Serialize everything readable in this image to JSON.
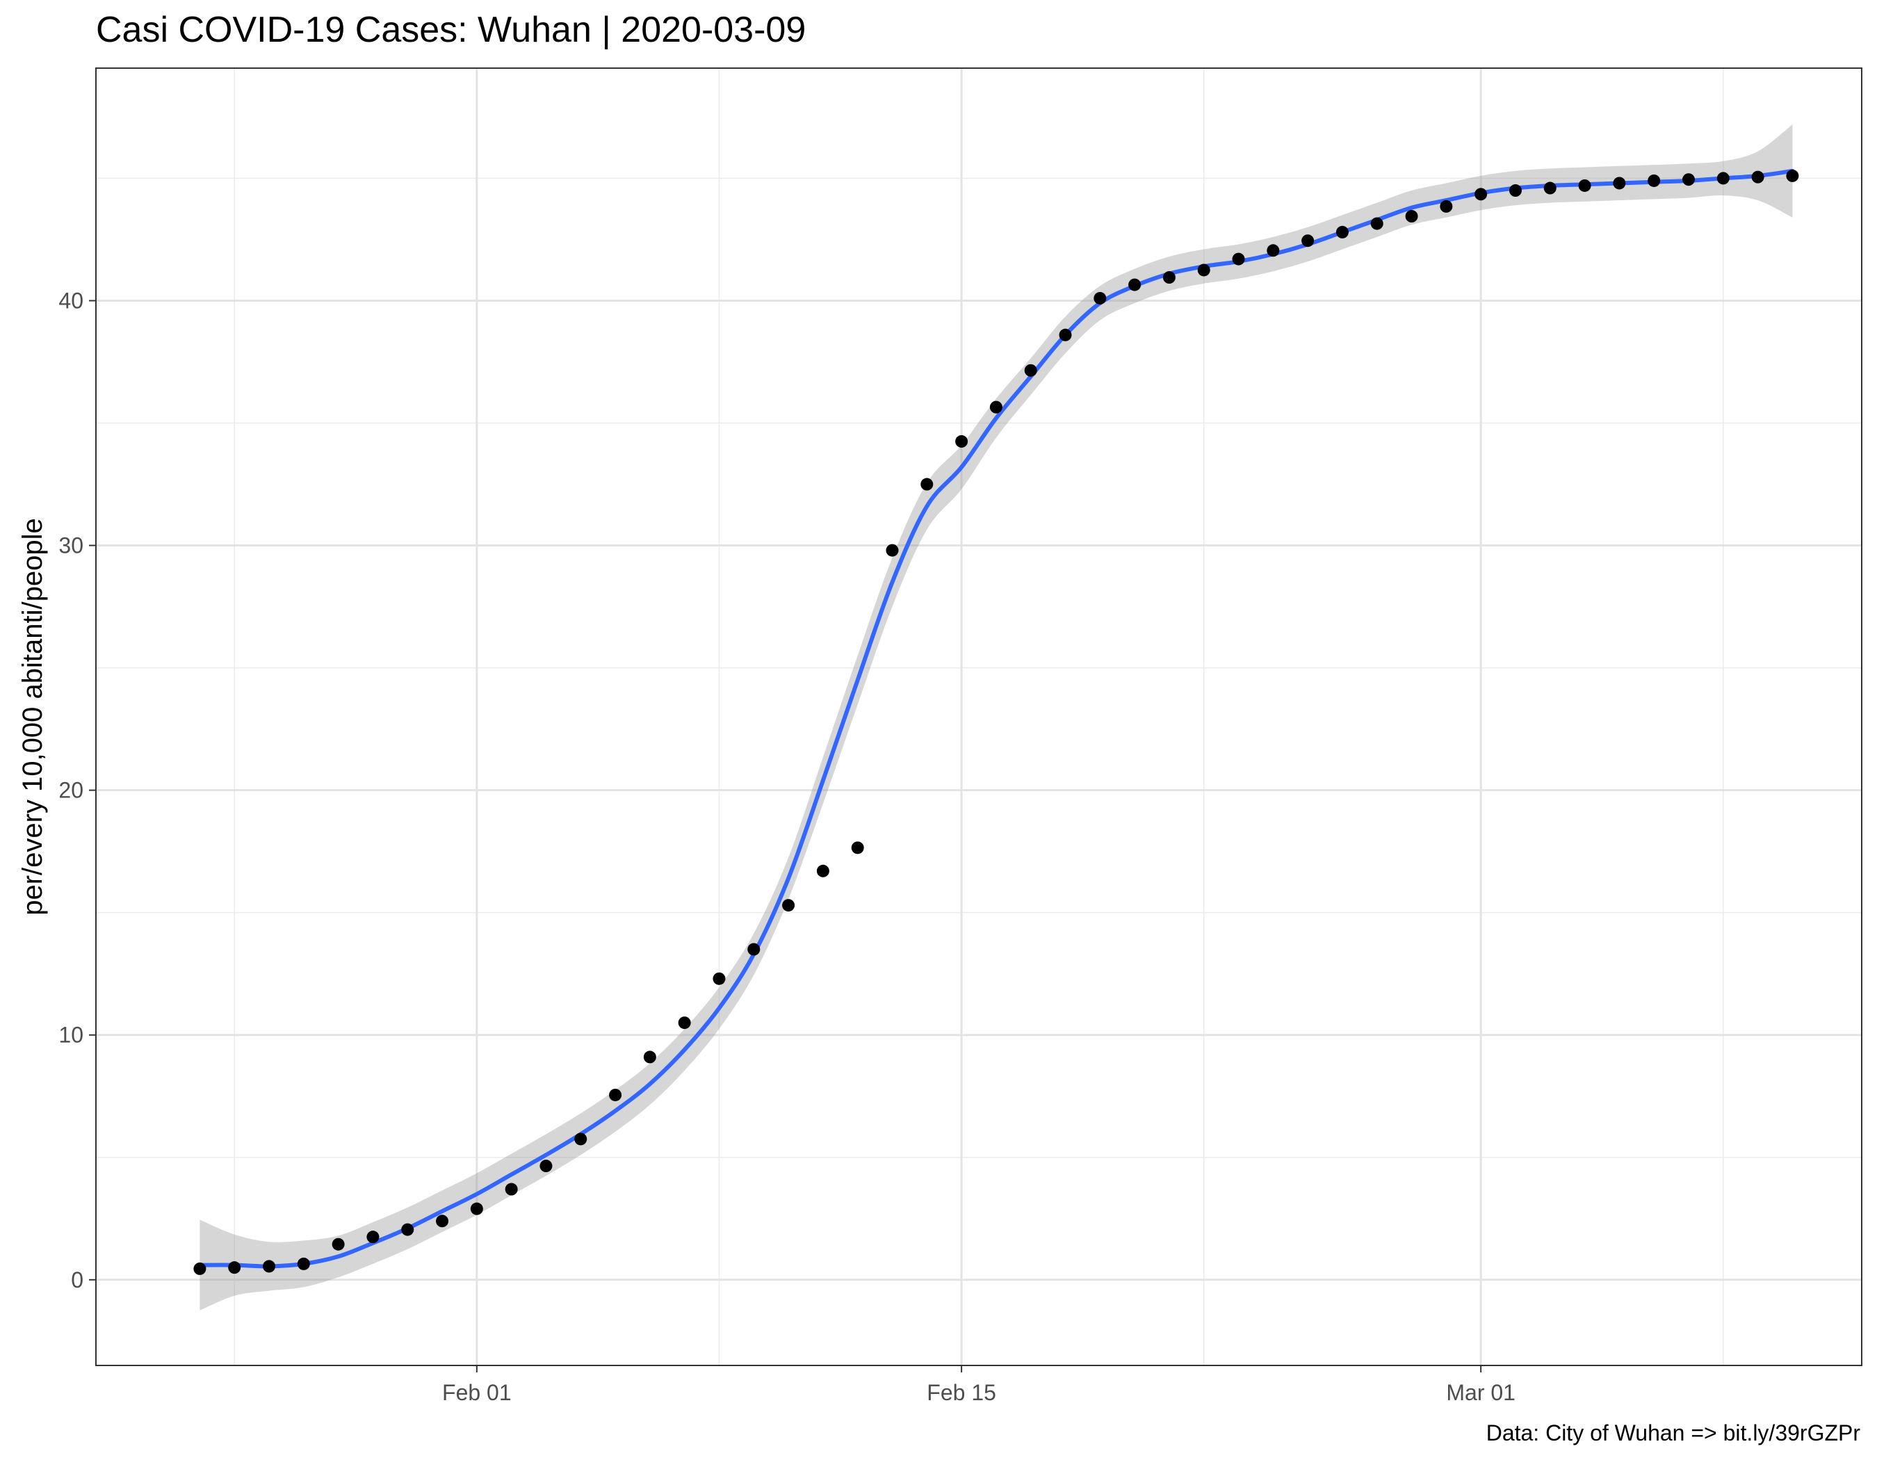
{
  "chart_data": {
    "type": "scatter",
    "title": "Casi COVID-19 Cases: Wuhan | 2020-03-09",
    "xlabel": "",
    "ylabel": "per/every 10,000 abitanti/people",
    "caption": "Data: City of Wuhan => bit.ly/39rGZPr",
    "x_axis": {
      "type": "date",
      "range": [
        "2020-01-21",
        "2020-03-12"
      ],
      "ticks": [
        {
          "date": "2020-02-01",
          "label": "Feb 01"
        },
        {
          "date": "2020-02-15",
          "label": "Feb 15"
        },
        {
          "date": "2020-03-01",
          "label": "Mar 01"
        }
      ],
      "minor_grid_dates": [
        "2020-01-25",
        "2020-02-08",
        "2020-02-22",
        "2020-03-08"
      ]
    },
    "y_axis": {
      "range": [
        -3.5,
        49.5
      ],
      "ticks": [
        0,
        10,
        20,
        30,
        40
      ],
      "minor_grid": [
        5,
        15,
        25,
        35,
        45
      ]
    },
    "grid": true,
    "series": [
      {
        "kind": "points",
        "x": [
          "2020-01-24",
          "2020-01-25",
          "2020-01-26",
          "2020-01-27",
          "2020-01-28",
          "2020-01-29",
          "2020-01-30",
          "2020-01-31",
          "2020-02-01",
          "2020-02-02",
          "2020-02-03",
          "2020-02-04",
          "2020-02-05",
          "2020-02-06",
          "2020-02-07",
          "2020-02-08",
          "2020-02-09",
          "2020-02-10",
          "2020-02-11",
          "2020-02-12",
          "2020-02-13",
          "2020-02-14",
          "2020-02-15",
          "2020-02-16",
          "2020-02-17",
          "2020-02-18",
          "2020-02-19",
          "2020-02-20",
          "2020-02-21",
          "2020-02-22",
          "2020-02-23",
          "2020-02-24",
          "2020-02-25",
          "2020-02-26",
          "2020-02-27",
          "2020-02-28",
          "2020-02-29",
          "2020-03-01",
          "2020-03-02",
          "2020-03-03",
          "2020-03-04",
          "2020-03-05",
          "2020-03-06",
          "2020-03-07",
          "2020-03-08",
          "2020-03-09",
          "2020-03-10"
        ],
        "y": [
          0.45,
          0.5,
          0.55,
          0.65,
          1.45,
          1.75,
          2.05,
          2.4,
          2.9,
          3.7,
          4.65,
          5.75,
          7.55,
          9.1,
          10.5,
          12.3,
          13.5,
          15.3,
          16.7,
          17.65,
          29.8,
          32.5,
          34.25,
          35.65,
          37.15,
          38.6,
          40.1,
          40.65,
          40.95,
          41.25,
          41.7,
          42.05,
          42.45,
          42.8,
          43.15,
          43.45,
          43.85,
          44.35,
          44.5,
          44.6,
          44.7,
          44.8,
          44.9,
          44.95,
          45.0,
          45.05,
          45.1
        ],
        "color": "#000000"
      },
      {
        "kind": "smooth",
        "x": [
          "2020-01-24",
          "2020-01-25",
          "2020-01-26",
          "2020-01-27",
          "2020-01-28",
          "2020-01-29",
          "2020-01-30",
          "2020-01-31",
          "2020-02-01",
          "2020-02-02",
          "2020-02-03",
          "2020-02-04",
          "2020-02-05",
          "2020-02-06",
          "2020-02-07",
          "2020-02-08",
          "2020-02-09",
          "2020-02-10",
          "2020-02-11",
          "2020-02-12",
          "2020-02-13",
          "2020-02-14",
          "2020-02-15",
          "2020-02-16",
          "2020-02-17",
          "2020-02-18",
          "2020-02-19",
          "2020-02-20",
          "2020-02-21",
          "2020-02-22",
          "2020-02-23",
          "2020-02-24",
          "2020-02-25",
          "2020-02-26",
          "2020-02-27",
          "2020-02-28",
          "2020-02-29",
          "2020-03-01",
          "2020-03-02",
          "2020-03-03",
          "2020-03-04",
          "2020-03-05",
          "2020-03-06",
          "2020-03-07",
          "2020-03-08",
          "2020-03-09",
          "2020-03-10"
        ],
        "y": [
          0.6,
          0.6,
          0.55,
          0.65,
          0.95,
          1.5,
          2.1,
          2.8,
          3.5,
          4.3,
          5.1,
          5.95,
          6.9,
          8.0,
          9.4,
          11.1,
          13.3,
          16.4,
          20.4,
          24.5,
          28.5,
          31.6,
          33.2,
          35.2,
          36.9,
          38.6,
          39.9,
          40.6,
          41.1,
          41.4,
          41.6,
          41.9,
          42.3,
          42.8,
          43.3,
          43.8,
          44.1,
          44.4,
          44.6,
          44.7,
          44.75,
          44.8,
          44.85,
          44.9,
          45.0,
          45.1,
          45.3
        ],
        "band_half_width": [
          1.85,
          1.25,
          1.0,
          0.95,
          0.85,
          0.85,
          0.85,
          0.85,
          0.85,
          0.85,
          0.85,
          0.85,
          0.85,
          0.85,
          0.85,
          0.85,
          0.85,
          0.85,
          0.95,
          1.0,
          1.0,
          0.95,
          0.9,
          0.8,
          0.75,
          0.75,
          0.7,
          0.7,
          0.7,
          0.7,
          0.7,
          0.7,
          0.7,
          0.7,
          0.7,
          0.7,
          0.7,
          0.7,
          0.7,
          0.7,
          0.7,
          0.7,
          0.7,
          0.7,
          0.7,
          1.0,
          1.9
        ],
        "color": "#3366ff",
        "band_color": "#999999"
      }
    ]
  }
}
